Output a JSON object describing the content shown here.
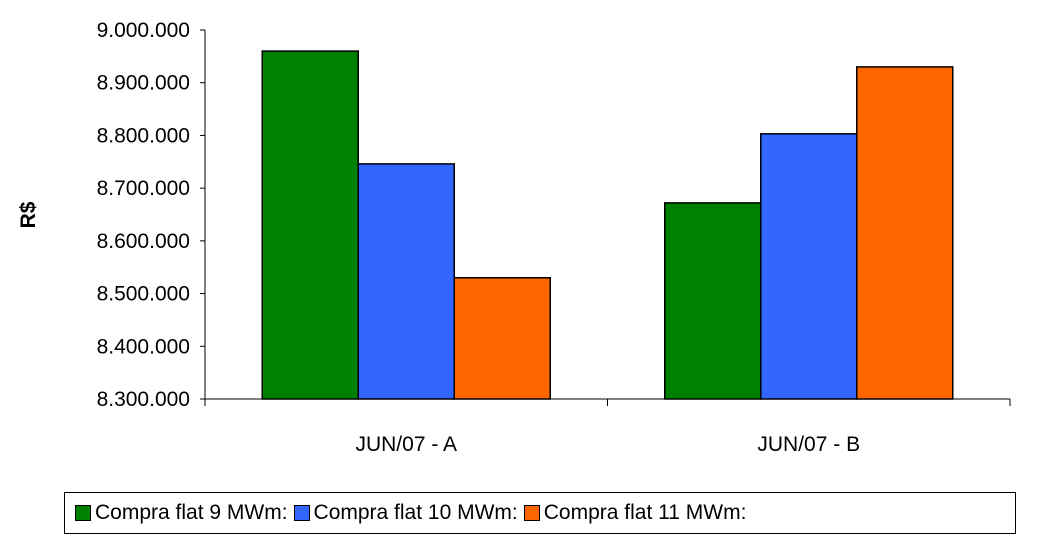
{
  "chart_data": {
    "type": "bar",
    "title": "",
    "xlabel": "",
    "ylabel": "R$",
    "ylim": [
      8300000,
      9000000
    ],
    "yticks": [
      8300000,
      8400000,
      8500000,
      8600000,
      8700000,
      8800000,
      8900000,
      9000000
    ],
    "ytick_labels": [
      "8.300.000",
      "8.400.000",
      "8.500.000",
      "8.600.000",
      "8.700.000",
      "8.800.000",
      "8.900.000",
      "9.000.000"
    ],
    "categories": [
      "JUN/07 - A",
      "JUN/07 - B"
    ],
    "series": [
      {
        "name": "Compra flat 9 MWm:",
        "color": "#008000",
        "values": [
          8960000,
          8672000
        ]
      },
      {
        "name": "Compra flat 10 MWm:",
        "color": "#3366FF",
        "values": [
          8746000,
          8803000
        ]
      },
      {
        "name": "Compra flat 11 MWm:",
        "color": "#FF6600",
        "values": [
          8530000,
          8930000
        ]
      }
    ],
    "grid": false,
    "legend_position": "bottom"
  }
}
